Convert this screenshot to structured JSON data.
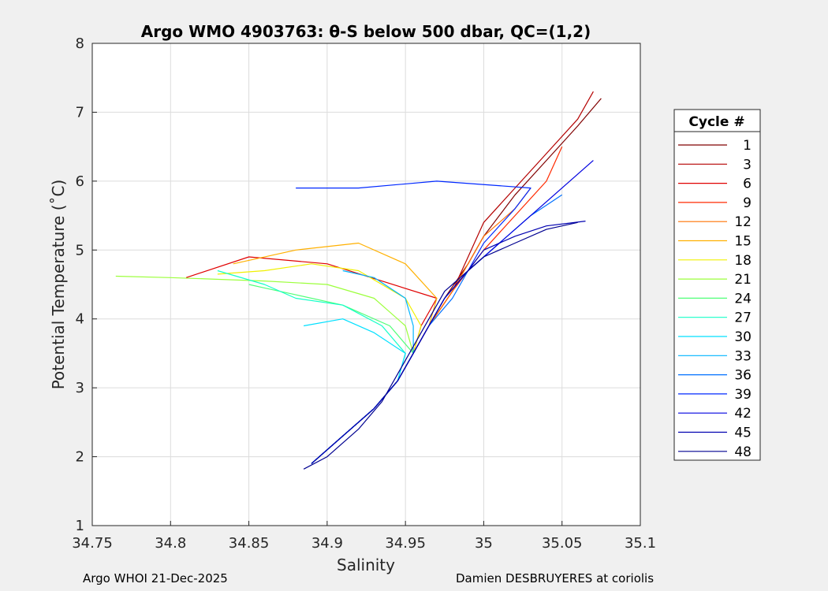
{
  "chart_data": {
    "type": "line",
    "title": "Argo WMO 4903763: θ-S below 500 dbar,  QC=(1,2)",
    "xlabel": "Salinity",
    "ylabel": "Potential Temperature (˚C)",
    "xlim": [
      34.75,
      35.1
    ],
    "ylim": [
      1,
      8
    ],
    "xticks": [
      "34.75",
      "34.8",
      "34.85",
      "34.9",
      "34.95",
      "35",
      "35.05",
      "35.1"
    ],
    "yticks": [
      "1",
      "2",
      "3",
      "4",
      "5",
      "6",
      "7",
      "8"
    ],
    "grid": true,
    "legend": {
      "title": "Cycle #",
      "placement": "right-outside",
      "entries": [
        {
          "label": "1",
          "color": "#800000"
        },
        {
          "label": "3",
          "color": "#b40000"
        },
        {
          "label": "6",
          "color": "#e00000"
        },
        {
          "label": "9",
          "color": "#ff2a00"
        },
        {
          "label": "12",
          "color": "#ff7000"
        },
        {
          "label": "15",
          "color": "#ffb000"
        },
        {
          "label": "18",
          "color": "#f0f000"
        },
        {
          "label": "21",
          "color": "#9cff3c"
        },
        {
          "label": "24",
          "color": "#50ff78"
        },
        {
          "label": "27",
          "color": "#14ffc8"
        },
        {
          "label": "30",
          "color": "#00e0ff"
        },
        {
          "label": "33",
          "color": "#00b4ff"
        },
        {
          "label": "36",
          "color": "#0070ff"
        },
        {
          "label": "39",
          "color": "#0028ff"
        },
        {
          "label": "42",
          "color": "#0000e0"
        },
        {
          "label": "45",
          "color": "#0000b0"
        },
        {
          "label": "48",
          "color": "#000090"
        }
      ]
    },
    "series": [
      {
        "cycle": "1",
        "color": "#800000",
        "x": [
          34.89,
          34.91,
          34.93,
          34.945,
          34.955,
          34.965,
          34.975,
          34.99,
          35.0,
          35.02,
          35.04,
          35.06,
          35.075
        ],
        "y": [
          1.9,
          2.3,
          2.7,
          3.1,
          3.5,
          3.9,
          4.3,
          4.8,
          5.2,
          5.8,
          6.3,
          6.8,
          7.2
        ]
      },
      {
        "cycle": "3",
        "color": "#b40000",
        "x": [
          34.89,
          34.91,
          34.93,
          34.945,
          34.955,
          34.965,
          34.98,
          34.99,
          35.0,
          35.02,
          35.04,
          35.06,
          35.07
        ],
        "y": [
          1.9,
          2.3,
          2.7,
          3.1,
          3.5,
          3.9,
          4.4,
          4.9,
          5.4,
          5.9,
          6.4,
          6.9,
          7.3
        ]
      },
      {
        "cycle": "6",
        "color": "#e00000",
        "x": [
          34.89,
          34.91,
          34.93,
          34.945,
          34.955,
          34.96,
          34.97,
          34.9,
          34.85,
          34.81
        ],
        "y": [
          1.9,
          2.3,
          2.7,
          3.1,
          3.5,
          3.9,
          4.3,
          4.8,
          4.9,
          4.6
        ]
      },
      {
        "cycle": "9",
        "color": "#ff2a00",
        "x": [
          34.89,
          34.91,
          34.93,
          34.945,
          34.955,
          34.965,
          34.98,
          35.0,
          35.02,
          35.04,
          35.05
        ],
        "y": [
          1.9,
          2.3,
          2.7,
          3.1,
          3.5,
          3.9,
          4.4,
          5.0,
          5.5,
          6.0,
          6.5
        ]
      },
      {
        "cycle": "12",
        "color": "#ff7000",
        "x": [
          34.89,
          34.91,
          34.93,
          34.945,
          34.955,
          34.965,
          34.98,
          34.99,
          35.0,
          35.02,
          35.03
        ],
        "y": [
          1.9,
          2.3,
          2.7,
          3.1,
          3.5,
          3.9,
          4.4,
          4.8,
          5.2,
          5.6,
          5.9
        ]
      },
      {
        "cycle": "15",
        "color": "#ffb000",
        "x": [
          34.89,
          34.91,
          34.93,
          34.945,
          34.955,
          34.965,
          34.97,
          34.95,
          34.92,
          34.88,
          34.84
        ],
        "y": [
          1.9,
          2.3,
          2.7,
          3.1,
          3.5,
          3.9,
          4.3,
          4.8,
          5.1,
          5.0,
          4.8
        ]
      },
      {
        "cycle": "18",
        "color": "#f0f000",
        "x": [
          34.89,
          34.91,
          34.93,
          34.945,
          34.955,
          34.96,
          34.95,
          34.92,
          34.89,
          34.86,
          34.83
        ],
        "y": [
          1.9,
          2.3,
          2.7,
          3.1,
          3.5,
          3.9,
          4.3,
          4.7,
          4.8,
          4.7,
          4.65
        ]
      },
      {
        "cycle": "21",
        "color": "#9cff3c",
        "x": [
          34.89,
          34.91,
          34.93,
          34.945,
          34.955,
          34.95,
          34.93,
          34.9,
          34.86,
          34.8,
          34.765
        ],
        "y": [
          1.9,
          2.3,
          2.7,
          3.1,
          3.5,
          3.9,
          4.3,
          4.5,
          4.55,
          4.6,
          4.62
        ]
      },
      {
        "cycle": "24",
        "color": "#50ff78",
        "x": [
          34.89,
          34.91,
          34.93,
          34.945,
          34.955,
          34.94,
          34.91,
          34.88,
          34.86,
          34.85
        ],
        "y": [
          1.9,
          2.3,
          2.7,
          3.1,
          3.5,
          3.9,
          4.2,
          4.35,
          4.45,
          4.5
        ]
      },
      {
        "cycle": "27",
        "color": "#14ffc8",
        "x": [
          34.89,
          34.91,
          34.93,
          34.945,
          34.95,
          34.935,
          34.91,
          34.88,
          34.86,
          34.83
        ],
        "y": [
          1.9,
          2.3,
          2.7,
          3.1,
          3.5,
          3.9,
          4.2,
          4.3,
          4.5,
          4.7
        ]
      },
      {
        "cycle": "30",
        "color": "#00e0ff",
        "x": [
          34.89,
          34.91,
          34.93,
          34.945,
          34.95,
          34.93,
          34.91,
          34.885
        ],
        "y": [
          1.9,
          2.3,
          2.7,
          3.1,
          3.5,
          3.8,
          4.0,
          3.9
        ]
      },
      {
        "cycle": "33",
        "color": "#00b4ff",
        "x": [
          34.89,
          34.91,
          34.93,
          34.945,
          34.955,
          34.955,
          34.95,
          34.93,
          34.91
        ],
        "y": [
          1.9,
          2.3,
          2.7,
          3.1,
          3.5,
          3.9,
          4.3,
          4.6,
          4.7
        ]
      },
      {
        "cycle": "36",
        "color": "#0070ff",
        "x": [
          34.89,
          34.91,
          34.93,
          34.945,
          34.955,
          34.965,
          34.98,
          34.99,
          35.01,
          35.03,
          35.05
        ],
        "y": [
          1.9,
          2.3,
          2.7,
          3.1,
          3.5,
          3.9,
          4.3,
          4.7,
          5.1,
          5.5,
          5.8
        ]
      },
      {
        "cycle": "39",
        "color": "#0028ff",
        "x": [
          34.89,
          34.91,
          34.93,
          34.945,
          34.955,
          34.965,
          34.975,
          34.99,
          35.0,
          35.02,
          35.03,
          34.97,
          34.92,
          34.88
        ],
        "y": [
          1.9,
          2.3,
          2.7,
          3.1,
          3.5,
          3.9,
          4.3,
          4.7,
          5.1,
          5.6,
          5.9,
          6.0,
          5.9,
          5.9
        ]
      },
      {
        "cycle": "42",
        "color": "#0000e0",
        "x": [
          34.89,
          34.91,
          34.93,
          34.945,
          34.955,
          34.965,
          34.975,
          34.99,
          35.01,
          35.03,
          35.05,
          35.07
        ],
        "y": [
          1.9,
          2.3,
          2.7,
          3.1,
          3.5,
          3.9,
          4.3,
          4.7,
          5.1,
          5.5,
          5.9,
          6.3
        ]
      },
      {
        "cycle": "45",
        "color": "#0000b0",
        "x": [
          34.89,
          34.91,
          34.93,
          34.945,
          34.955,
          34.965,
          34.975,
          34.99,
          35.0,
          35.02,
          35.04,
          35.065
        ],
        "y": [
          1.9,
          2.3,
          2.7,
          3.1,
          3.5,
          3.9,
          4.3,
          4.7,
          5.0,
          5.2,
          5.35,
          5.42
        ]
      },
      {
        "cycle": "48",
        "color": "#000090",
        "x": [
          34.885,
          34.9,
          34.92,
          34.935,
          34.945,
          34.955,
          34.965,
          34.975,
          34.99,
          35.0,
          35.02,
          35.04,
          35.06
        ],
        "y": [
          1.82,
          2.0,
          2.4,
          2.8,
          3.2,
          3.6,
          4.0,
          4.4,
          4.7,
          4.9,
          5.1,
          5.3,
          5.4
        ]
      }
    ]
  },
  "footer": {
    "left": "Argo WHOI 21-Dec-2025",
    "right": "Damien DESBRUYERES at coriolis"
  }
}
